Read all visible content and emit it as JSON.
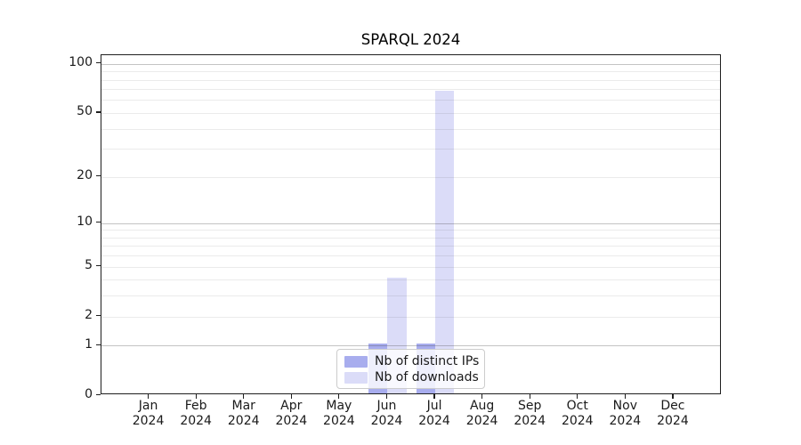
{
  "figure": {
    "background": "#ffffff",
    "spine_color": "#1f1f1f",
    "text_color": "#1a1a1a",
    "minor_grid_color": "rgba(60,60,60,0.10)",
    "major_grid_color": "rgba(60,60,60,0.30)",
    "legend_border_color": "#cccccc"
  },
  "chart_data": {
    "type": "bar",
    "title": "SPARQL 2024",
    "xlabel": "",
    "ylabel": "",
    "yscale": "log1p",
    "ylim": [
      0,
      113
    ],
    "grid": true,
    "legend_position": "lower center",
    "categories": [
      "Jan 2024",
      "Feb 2024",
      "Mar 2024",
      "Apr 2024",
      "May 2024",
      "Jun 2024",
      "Jul 2024",
      "Aug 2024",
      "Sep 2024",
      "Oct 2024",
      "Nov 2024",
      "Dec 2024"
    ],
    "series": [
      {
        "name": "Nb of distinct IPs",
        "color": "#a8adee",
        "values": [
          0,
          0,
          0,
          0,
          0,
          1,
          1,
          0,
          0,
          0,
          0,
          0
        ]
      },
      {
        "name": "Nb of downloads",
        "color": "#dbdcf8",
        "values": [
          0,
          0,
          0,
          0,
          0,
          4,
          67,
          0,
          0,
          0,
          0,
          0
        ]
      }
    ],
    "yticks": [
      0,
      1,
      2,
      5,
      10,
      20,
      50,
      100
    ],
    "major_gridlines": [
      1,
      10,
      100
    ],
    "minor_gridlines": [
      2,
      3,
      4,
      5,
      6,
      7,
      8,
      9,
      20,
      30,
      40,
      50,
      60,
      70,
      80,
      90
    ],
    "bar_width_fraction": 0.4
  }
}
